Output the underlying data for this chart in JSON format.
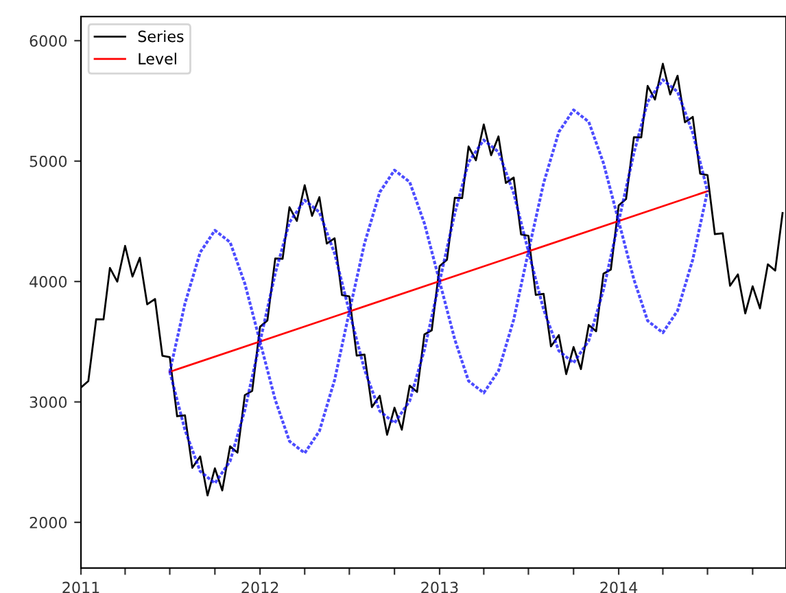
{
  "chart_data": {
    "type": "line",
    "xlim": [
      "2011-01-01",
      "2014-12-08"
    ],
    "ylim": [
      1620,
      6200
    ],
    "xticks": [
      {
        "value": "2011-01-01",
        "label": "2011"
      },
      {
        "value": "2011-04-01",
        "label": null
      },
      {
        "value": "2011-07-01",
        "label": null
      },
      {
        "value": "2011-10-01",
        "label": null
      },
      {
        "value": "2012-01-01",
        "label": "2012"
      },
      {
        "value": "2012-04-01",
        "label": null
      },
      {
        "value": "2012-07-01",
        "label": null
      },
      {
        "value": "2012-10-01",
        "label": null
      },
      {
        "value": "2013-01-01",
        "label": "2013"
      },
      {
        "value": "2013-04-01",
        "label": null
      },
      {
        "value": "2013-07-01",
        "label": null
      },
      {
        "value": "2013-10-01",
        "label": null
      },
      {
        "value": "2014-01-01",
        "label": "2014"
      },
      {
        "value": "2014-04-01",
        "label": null
      },
      {
        "value": "2014-07-01",
        "label": null
      },
      {
        "value": "2014-10-01",
        "label": null
      }
    ],
    "yticks": [
      2000,
      3000,
      4000,
      5000,
      6000
    ],
    "grid": false,
    "legend": "top left",
    "series": [
      {
        "name": "Series",
        "color": "#000000",
        "line_style": "solid",
        "x": [
          "2011-01-01",
          "2011-01-16",
          "2011-02-01",
          "2011-02-16",
          "2011-03-01",
          "2011-03-16",
          "2011-04-01",
          "2011-04-16",
          "2011-05-01",
          "2011-05-16",
          "2011-06-01",
          "2011-06-16",
          "2011-07-01",
          "2011-07-16",
          "2011-08-01",
          "2011-08-16",
          "2011-09-01",
          "2011-09-16",
          "2011-10-01",
          "2011-10-16",
          "2011-11-01",
          "2011-11-16",
          "2011-12-01",
          "2011-12-16",
          "2012-01-01",
          "2012-01-16",
          "2012-02-01",
          "2012-02-16",
          "2012-03-01",
          "2012-03-16",
          "2012-04-01",
          "2012-04-16",
          "2012-05-01",
          "2012-05-16",
          "2012-06-01",
          "2012-06-16",
          "2012-07-01",
          "2012-07-16",
          "2012-08-01",
          "2012-08-16",
          "2012-09-01",
          "2012-09-16",
          "2012-10-01",
          "2012-10-16",
          "2012-11-01",
          "2012-11-16",
          "2012-12-01",
          "2012-12-16",
          "2013-01-01",
          "2013-01-16",
          "2013-02-01",
          "2013-02-16",
          "2013-03-01",
          "2013-03-16",
          "2013-04-01",
          "2013-04-16",
          "2013-05-01",
          "2013-05-16",
          "2013-06-01",
          "2013-06-16",
          "2013-07-01",
          "2013-07-16",
          "2013-08-01",
          "2013-08-16",
          "2013-09-01",
          "2013-09-16",
          "2013-10-01",
          "2013-10-16",
          "2013-11-01",
          "2013-11-16",
          "2013-12-01",
          "2013-12-16",
          "2014-01-01",
          "2014-01-16",
          "2014-02-01",
          "2014-02-16",
          "2014-03-01",
          "2014-03-16",
          "2014-04-01",
          "2014-04-16",
          "2014-05-01",
          "2014-05-16",
          "2014-06-01",
          "2014-06-16",
          "2014-07-01",
          "2014-07-16",
          "2014-08-01",
          "2014-08-16",
          "2014-09-01",
          "2014-09-16",
          "2014-10-01",
          "2014-10-16",
          "2014-11-01",
          "2014-11-16",
          "2014-12-01"
        ],
        "values": [
          3120,
          3173,
          3687,
          3685,
          4113,
          3999,
          4296,
          4041,
          4197,
          3811,
          3855,
          3383,
          3372,
          2881,
          2889,
          2453,
          2547,
          2223,
          2448,
          2265,
          2631,
          2579,
          3057,
          3091,
          3624,
          3677,
          4191,
          4189,
          4617,
          4503,
          4800,
          4545,
          4701,
          4315,
          4359,
          3887,
          3876,
          3385,
          3393,
          2957,
          3051,
          2727,
          2952,
          2769,
          3135,
          3083,
          3561,
          3595,
          4128,
          4181,
          4695,
          4693,
          5121,
          5007,
          5304,
          5049,
          5205,
          4819,
          4863,
          4391,
          4380,
          3889,
          3897,
          3461,
          3555,
          3231,
          3456,
          3273,
          3639,
          3587,
          4065,
          4099,
          4632,
          4685,
          5199,
          5197,
          5625,
          5511,
          5808,
          5553,
          5709,
          5323,
          5367,
          4895,
          4884,
          4393,
          4401,
          3965,
          4059,
          3735,
          3960,
          3777,
          4143,
          4091,
          4569
        ]
      },
      {
        "name": "Level",
        "color": "#ff0000",
        "line_style": "solid",
        "x": [
          "2011-07-01",
          "2014-07-01"
        ],
        "values": [
          3250,
          4750
        ]
      },
      {
        "color": "#0000ff",
        "line_style": "dotted",
        "x": [
          "2011-07-01",
          "2011-08-01",
          "2011-09-01",
          "2011-10-01",
          "2011-11-01",
          "2011-12-01",
          "2012-01-01",
          "2012-02-01",
          "2012-03-01",
          "2012-04-01",
          "2012-05-01",
          "2012-06-01",
          "2012-07-01",
          "2012-08-01",
          "2012-09-01",
          "2012-10-01",
          "2012-11-01",
          "2012-12-01",
          "2013-01-01",
          "2013-02-01",
          "2013-03-01",
          "2013-04-01",
          "2013-05-01",
          "2013-06-01",
          "2013-07-01",
          "2013-08-01",
          "2013-09-01",
          "2013-10-01",
          "2013-11-01",
          "2013-12-01",
          "2014-01-01",
          "2014-02-01",
          "2014-03-01",
          "2014-04-01",
          "2014-05-01",
          "2014-06-01",
          "2014-07-01"
        ],
        "values": [
          3250,
          2767,
          2424,
          2325,
          2508,
          2933,
          3500,
          4067,
          4492,
          4675,
          4576,
          4233,
          3750,
          3267,
          2924,
          2825,
          3008,
          3433,
          4000,
          4567,
          4992,
          5175,
          5076,
          4733,
          4250,
          3767,
          3424,
          3325,
          3508,
          3933,
          4500,
          5067,
          5492,
          5675,
          5576,
          5233,
          4750
        ]
      },
      {
        "color": "#0000ff",
        "line_style": "dotted",
        "x": [
          "2011-07-01",
          "2011-08-01",
          "2011-09-01",
          "2011-10-01",
          "2011-11-01",
          "2011-12-01",
          "2012-01-01",
          "2012-02-01",
          "2012-03-01",
          "2012-04-01",
          "2012-05-01",
          "2012-06-01",
          "2012-07-01",
          "2012-08-01",
          "2012-09-01",
          "2012-10-01",
          "2012-11-01",
          "2012-12-01",
          "2013-01-01",
          "2013-02-01",
          "2013-03-01",
          "2013-04-01",
          "2013-05-01",
          "2013-06-01",
          "2013-07-01",
          "2013-08-01",
          "2013-09-01",
          "2013-10-01",
          "2013-11-01",
          "2013-12-01",
          "2014-01-01",
          "2014-02-01",
          "2014-03-01",
          "2014-04-01",
          "2014-05-01",
          "2014-06-01",
          "2014-07-01"
        ],
        "values": [
          3250,
          3817,
          4242,
          4425,
          4326,
          3983,
          3500,
          3017,
          2674,
          2575,
          2758,
          3183,
          3750,
          4317,
          4742,
          4925,
          4826,
          4483,
          4000,
          3517,
          3174,
          3075,
          3258,
          3683,
          4250,
          4817,
          5242,
          5425,
          5326,
          4983,
          4500,
          4017,
          3674,
          3575,
          3758,
          4183,
          4750
        ]
      }
    ]
  }
}
